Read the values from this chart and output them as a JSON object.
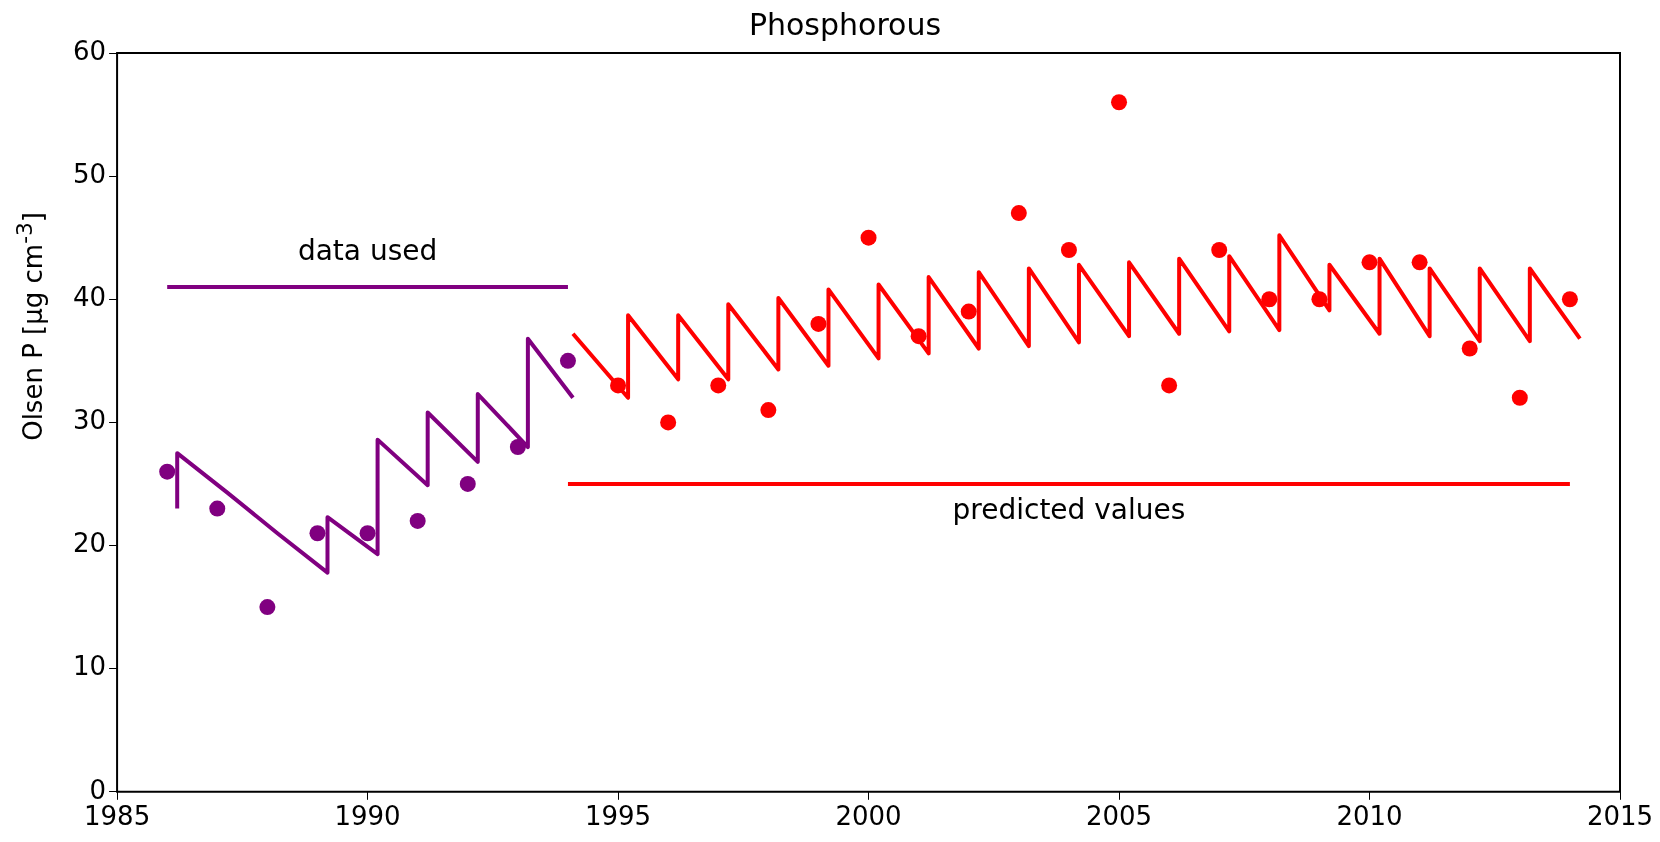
{
  "chart_data": {
    "type": "scatter",
    "title": "Phosphorous",
    "ylabel": "Olsen P [μg cm$^{-3}$]",
    "xlim": [
      1985,
      2015
    ],
    "xticks": [
      1985,
      1990,
      1995,
      2000,
      2005,
      2010,
      2015
    ],
    "ylim": [
      0,
      60
    ],
    "yticks": [
      0,
      10,
      20,
      30,
      40,
      50,
      60
    ],
    "grid": false,
    "series": [
      {
        "type": "line",
        "marker": "none",
        "color": "#800080",
        "x": [
          1986,
          1994
        ],
        "values": [
          41,
          41
        ]
      },
      {
        "type": "line",
        "marker": "none",
        "color": "#ff0000",
        "x": [
          1994,
          2014
        ],
        "values": [
          25,
          25
        ]
      },
      {
        "type": "line",
        "marker": "none",
        "color": "#800080",
        "x": [
          1986.2,
          1986.2,
          1987.2,
          1988.2,
          1989.2,
          1989.2,
          1990.2,
          1990.2,
          1991.2,
          1991.2,
          1992.2,
          1992.2,
          1993.2,
          1993.2,
          1994.1
        ],
        "values": [
          23,
          27.5,
          24.3,
          21,
          17.8,
          22.3,
          19.3,
          28.6,
          24.9,
          30.8,
          26.8,
          32.3,
          28,
          36.8,
          32
        ]
      },
      {
        "type": "line",
        "marker": "none",
        "color": "#ff0000",
        "x": [
          1994.1,
          1995.2,
          1995.2,
          1996.2,
          1996.2,
          1997.2,
          1997.2,
          1998.2,
          1998.2,
          1999.2,
          1999.2,
          2000.2,
          2000.2,
          2001.2,
          2001.2,
          2002.2,
          2002.2,
          2003.2,
          2003.2,
          2004.2,
          2004.2,
          2005.2,
          2005.2,
          2006.2,
          2006.2,
          2007.2,
          2007.2,
          2008.2,
          2008.2,
          2009.2,
          2009.2,
          2010.2,
          2010.2,
          2011.2,
          2011.2,
          2012.2,
          2012.2,
          2013.2,
          2013.2,
          2014.2
        ],
        "values": [
          37.2,
          32,
          38.7,
          33.5,
          38.7,
          33.5,
          39.6,
          34.3,
          40.1,
          34.6,
          40.8,
          35.2,
          41.2,
          35.6,
          41.8,
          36,
          42.2,
          36.2,
          42.5,
          36.5,
          42.8,
          37,
          43,
          37.2,
          43.3,
          37.4,
          43.5,
          37.5,
          45.2,
          39.1,
          42.8,
          37.2,
          43.3,
          37,
          42.5,
          36.6,
          42.5,
          36.6,
          42.5,
          36.8
        ]
      },
      {
        "type": "scatter",
        "marker": "circle",
        "color": "#800080",
        "x": [
          1986,
          1987,
          1988,
          1989,
          1990,
          1991,
          1992,
          1993,
          1994
        ],
        "values": [
          26,
          23,
          15,
          21,
          21,
          22,
          25,
          28,
          35
        ]
      },
      {
        "type": "scatter",
        "marker": "circle",
        "color": "#ff0000",
        "x": [
          1995,
          1996,
          1997,
          1998,
          1999,
          2000,
          2001,
          2002,
          2003,
          2004,
          2005,
          2006,
          2007,
          2008,
          2009,
          2010,
          2011,
          2012,
          2013,
          2014
        ],
        "values": [
          33,
          30,
          33,
          31,
          38,
          45,
          37,
          39,
          47,
          44,
          56,
          33,
          44,
          40,
          40,
          43,
          43,
          36,
          32,
          40
        ]
      }
    ],
    "annotations": [
      "data used",
      "predicted values"
    ]
  }
}
